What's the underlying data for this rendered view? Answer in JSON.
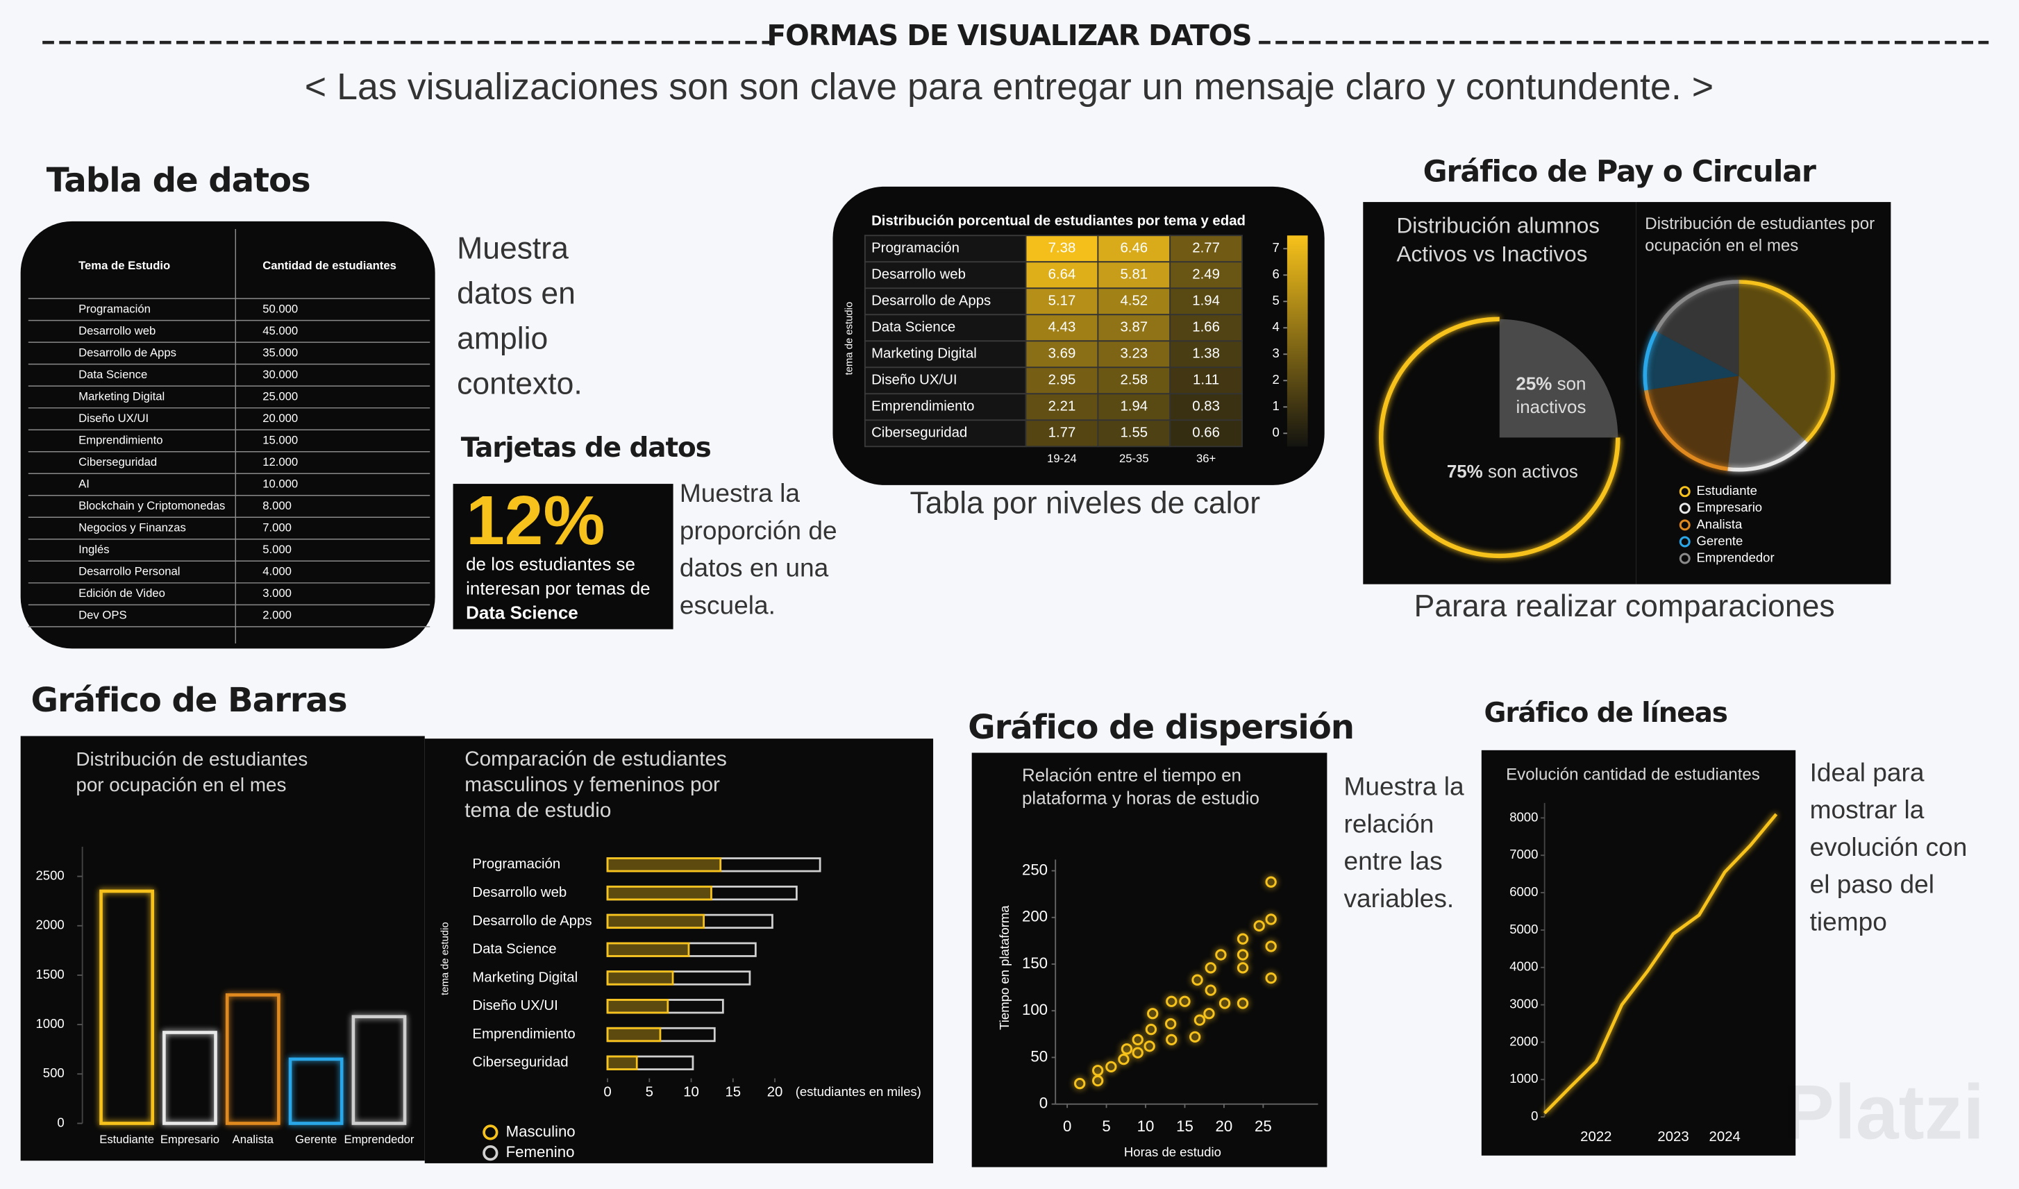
{
  "header": {
    "title": "FORMAS DE VISUALIZAR DATOS",
    "subtitle": "< Las visualizaciones son son clave para entregar un mensaje claro y contundente. >"
  },
  "sections": {
    "table": "Tabla de datos",
    "card": "Tarjetas de datos",
    "pie": "Gráfico de Pay o Circular",
    "bar": "Gráfico de Barras",
    "scatter": "Gráfico de dispersión",
    "line": "Gráfico de líneas"
  },
  "notes": {
    "table": "Muestra datos en amplio contexto.",
    "card": "Muestra la proporción de datos en una escuela.",
    "heatmap": "Tabla por niveles de calor",
    "pie": "Parara realizar comparaciones",
    "scatter": "Muestra la relación entre las variables.",
    "line": "Ideal para mostrar la evolución con el paso del tiempo"
  },
  "table": {
    "header": [
      "Tema de Estudio",
      "Cantidad de estudiantes"
    ],
    "rows": [
      [
        "Programación",
        "50.000"
      ],
      [
        "Desarrollo web",
        "45.000"
      ],
      [
        "Desarrollo de Apps",
        "35.000"
      ],
      [
        "Data Science",
        "30.000"
      ],
      [
        "Marketing Digital",
        "25.000"
      ],
      [
        "Diseño UX/UI",
        "20.000"
      ],
      [
        "Emprendimiento",
        "15.000"
      ],
      [
        "Ciberseguridad",
        "12.000"
      ],
      [
        "AI",
        "10.000"
      ],
      [
        "Blockchain y Criptomonedas",
        "8.000"
      ],
      [
        "Negocios y Finanzas",
        "7.000"
      ],
      [
        "Inglés",
        "5.000"
      ],
      [
        "Desarrollo Personal",
        "4.000"
      ],
      [
        "Edición de Video",
        "3.000"
      ],
      [
        "Dev OPS",
        "2.000"
      ]
    ]
  },
  "card": {
    "value": "12%",
    "text": "de los estudiantes se interesan por temas de",
    "highlight": "Data Science"
  },
  "chart_data": [
    {
      "type": "heatmap",
      "title": "Distribución porcentual de estudiantes por tema y edad",
      "ylabel": "tema de estudio",
      "categories": [
        "Programación",
        "Desarrollo web",
        "Desarrollo de Apps",
        "Data Science",
        "Marketing Digital",
        "Diseño UX/UI",
        "Emprendimiento",
        "Ciberseguridad"
      ],
      "columns": [
        "19-24",
        "25-35",
        "36+"
      ],
      "values": [
        [
          7.38,
          6.46,
          2.77
        ],
        [
          6.64,
          5.81,
          2.49
        ],
        [
          5.17,
          4.52,
          1.94
        ],
        [
          4.43,
          3.87,
          1.66
        ],
        [
          3.69,
          3.23,
          1.38
        ],
        [
          2.95,
          2.58,
          1.11
        ],
        [
          2.21,
          1.94,
          0.83
        ],
        [
          1.77,
          1.55,
          0.66
        ]
      ],
      "zlim": [
        -0.5,
        7.5
      ],
      "zticks": [
        0,
        1,
        2,
        3,
        4,
        5,
        6,
        7
      ],
      "color": "#f7c21b"
    },
    {
      "type": "pie",
      "title": "Distribución alumnos Activos vs Inactivos",
      "categories": [
        "son activos",
        "son inactivos"
      ],
      "values": [
        75,
        25
      ],
      "value_labels": [
        "75%",
        "25%"
      ],
      "colors": [
        "#f7c21b",
        "#5a5a5a"
      ]
    },
    {
      "type": "pie",
      "title": "Distribución de estudiantes por ocupación en el mes",
      "categories": [
        "Estudiante",
        "Empresario",
        "Analista",
        "Gerente",
        "Emprendedor"
      ],
      "values": [
        2350,
        920,
        1300,
        650,
        1080
      ],
      "colors": [
        "#f7c21b",
        "#e8e8e8",
        "#e0891e",
        "#2aa7e8",
        "#8a8a8a"
      ]
    },
    {
      "type": "bar",
      "title": "Distribución de estudiantes por ocupación en el mes",
      "categories": [
        "Estudiante",
        "Empresario",
        "Analista",
        "Gerente",
        "Emprendedor"
      ],
      "values": [
        2350,
        920,
        1300,
        650,
        1080
      ],
      "colors": [
        "#f7c21b",
        "#e8e8e8",
        "#e0891e",
        "#2aa7e8",
        "#cfcfcf"
      ],
      "ylim": [
        0,
        2800
      ],
      "yticks": [
        0,
        500,
        1000,
        1500,
        2000,
        2500
      ]
    },
    {
      "type": "hbar",
      "title": "Comparación de estudiantes masculinos y femeninos por tema de estudio",
      "ylabel": "tema de estudio",
      "xlabel": "(estudiantes en miles)",
      "categories": [
        "Programación",
        "Desarrollo web",
        "Desarrollo de Apps",
        "Data Science",
        "Marketing Digital",
        "Diseño UX/UI",
        "Emprendimiento",
        "Ciberseguridad"
      ],
      "series": [
        {
          "name": "Masculino",
          "color": "#f7c21b",
          "values": [
            13.5,
            12.4,
            11.5,
            9.7,
            7.8,
            7.2,
            6.3,
            3.5
          ]
        },
        {
          "name": "Femenino",
          "color": "#d0d0d0",
          "values": [
            25.4,
            22.6,
            19.7,
            17.7,
            17,
            13.8,
            12.8,
            10.2
          ]
        }
      ],
      "xlim": [
        0,
        26
      ],
      "xticks": [
        0,
        5,
        10,
        15,
        20
      ]
    },
    {
      "type": "scatter",
      "title": "Relación entre el tiempo en plataforma y horas de estudio",
      "xlabel": "Horas de estudio",
      "ylabel": "Tiempo en plataforma",
      "color": "#f7c21b",
      "x": [
        1.6,
        3.9,
        3.9,
        5.6,
        7.2,
        7.6,
        9.0,
        9.0,
        10.5,
        10.7,
        10.9,
        13.3,
        13.2,
        13.3,
        15.0,
        16.3,
        16.9,
        16.6,
        18.1,
        18.3,
        18.3,
        19.6,
        20.1,
        22.4,
        22.4,
        22.4,
        22.4,
        24.5,
        26.0,
        26.0,
        26.0,
        26.0
      ],
      "values": [
        22,
        25,
        36,
        40,
        48,
        59,
        55,
        69,
        62,
        80,
        97,
        69,
        86,
        110,
        110,
        72,
        90,
        133,
        97,
        122,
        146,
        160,
        108,
        108,
        146,
        160,
        177,
        191,
        198,
        169,
        135,
        238
      ],
      "xlim": [
        -1.5,
        32
      ],
      "ylim": [
        0,
        262
      ],
      "xticks": [
        0,
        5,
        10,
        15,
        20,
        25
      ],
      "yticks": [
        0,
        50,
        100,
        150,
        200,
        250
      ]
    },
    {
      "type": "line",
      "title": "Evolución cantidad de estudiantes",
      "color": "#f7c21b",
      "categories": [
        null,
        null,
        "2022",
        null,
        null,
        "2023",
        null,
        "2024",
        null,
        null
      ],
      "values": [
        100,
        800,
        1480,
        3000,
        3900,
        4900,
        5400,
        6550,
        7270,
        8100
      ],
      "ylim": [
        0,
        8400
      ],
      "yticks": [
        0,
        1000,
        2000,
        3000,
        4000,
        5000,
        6000,
        7000,
        8000
      ]
    }
  ],
  "watermark": "Platzi"
}
